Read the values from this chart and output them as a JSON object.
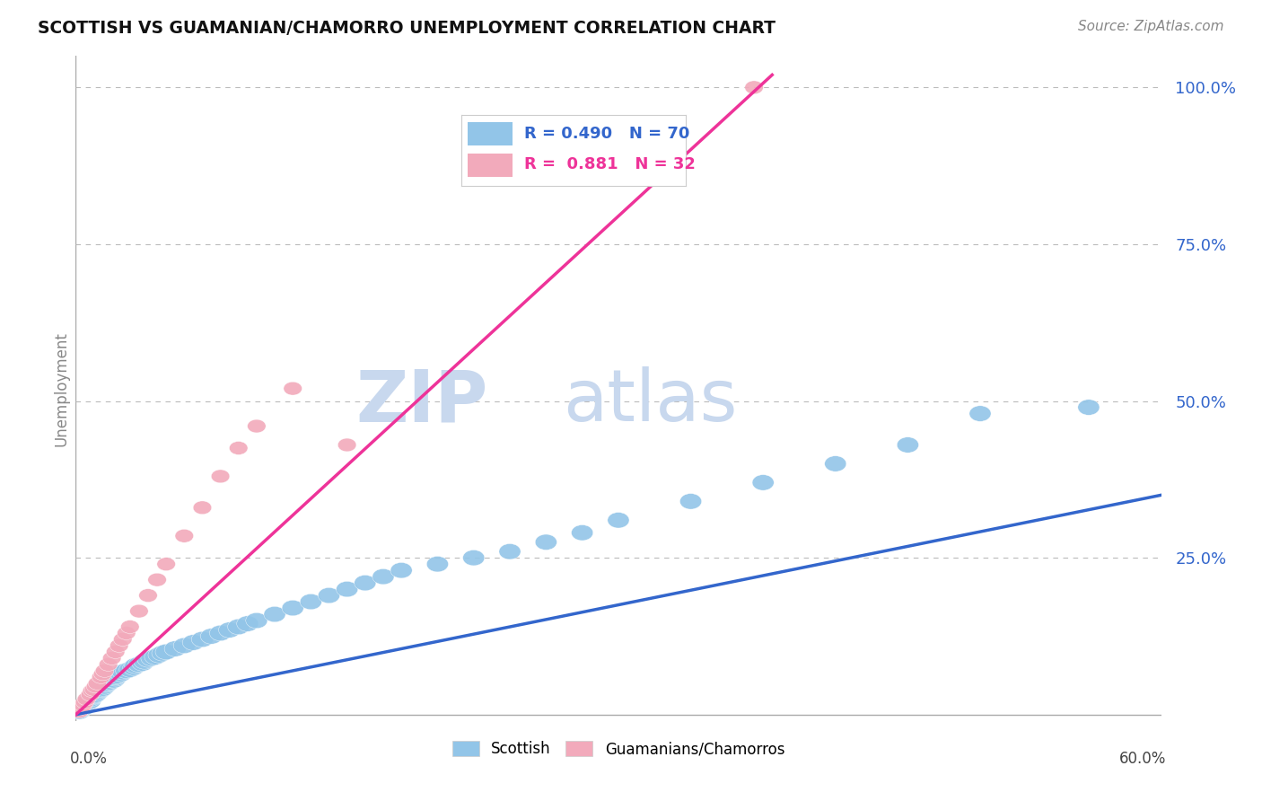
{
  "title": "SCOTTISH VS GUAMANIAN/CHAMORRO UNEMPLOYMENT CORRELATION CHART",
  "source": "Source: ZipAtlas.com",
  "ylabel": "Unemployment",
  "xlim": [
    0.0,
    0.6
  ],
  "ylim": [
    -0.01,
    1.05
  ],
  "legend_r1": "R = 0.490",
  "legend_n1": "N = 70",
  "legend_r2": "R =  0.881",
  "legend_n2": "N = 32",
  "color_scottish": "#92C5E8",
  "color_guamanian": "#F2AABB",
  "color_line_scottish": "#3366CC",
  "color_line_guamanian": "#EE3399",
  "background_color": "#FFFFFF",
  "scottish_x": [
    0.002,
    0.003,
    0.004,
    0.005,
    0.005,
    0.006,
    0.007,
    0.008,
    0.008,
    0.009,
    0.01,
    0.011,
    0.012,
    0.013,
    0.014,
    0.015,
    0.016,
    0.017,
    0.018,
    0.019,
    0.02,
    0.021,
    0.022,
    0.022,
    0.023,
    0.025,
    0.026,
    0.028,
    0.03,
    0.032,
    0.033,
    0.035,
    0.037,
    0.038,
    0.04,
    0.042,
    0.044,
    0.046,
    0.048,
    0.05,
    0.055,
    0.06,
    0.065,
    0.07,
    0.075,
    0.08,
    0.085,
    0.09,
    0.095,
    0.1,
    0.11,
    0.12,
    0.13,
    0.14,
    0.15,
    0.16,
    0.17,
    0.18,
    0.2,
    0.22,
    0.24,
    0.26,
    0.28,
    0.3,
    0.34,
    0.38,
    0.42,
    0.46,
    0.5,
    0.56
  ],
  "scottish_y": [
    0.005,
    0.008,
    0.01,
    0.012,
    0.015,
    0.018,
    0.02,
    0.022,
    0.025,
    0.028,
    0.03,
    0.032,
    0.035,
    0.038,
    0.04,
    0.042,
    0.045,
    0.048,
    0.05,
    0.052,
    0.055,
    0.055,
    0.058,
    0.06,
    0.062,
    0.065,
    0.068,
    0.07,
    0.072,
    0.075,
    0.078,
    0.08,
    0.082,
    0.085,
    0.088,
    0.09,
    0.092,
    0.095,
    0.098,
    0.1,
    0.105,
    0.11,
    0.115,
    0.12,
    0.125,
    0.13,
    0.135,
    0.14,
    0.145,
    0.15,
    0.16,
    0.17,
    0.18,
    0.19,
    0.2,
    0.21,
    0.22,
    0.23,
    0.24,
    0.25,
    0.26,
    0.275,
    0.29,
    0.31,
    0.34,
    0.37,
    0.4,
    0.43,
    0.48,
    0.49
  ],
  "guamanian_x": [
    0.002,
    0.003,
    0.004,
    0.005,
    0.006,
    0.008,
    0.009,
    0.01,
    0.011,
    0.012,
    0.014,
    0.015,
    0.016,
    0.018,
    0.02,
    0.022,
    0.024,
    0.026,
    0.028,
    0.03,
    0.035,
    0.04,
    0.045,
    0.05,
    0.06,
    0.07,
    0.08,
    0.09,
    0.1,
    0.12,
    0.15,
    0.375
  ],
  "guamanian_y": [
    0.005,
    0.01,
    0.015,
    0.02,
    0.025,
    0.032,
    0.038,
    0.04,
    0.045,
    0.05,
    0.06,
    0.065,
    0.07,
    0.08,
    0.09,
    0.1,
    0.11,
    0.12,
    0.13,
    0.14,
    0.165,
    0.19,
    0.215,
    0.24,
    0.285,
    0.33,
    0.38,
    0.425,
    0.46,
    0.52,
    0.43,
    1.0
  ],
  "blue_line_x": [
    0.0,
    0.6
  ],
  "blue_line_y": [
    0.0,
    0.35
  ],
  "pink_line_x": [
    0.0,
    0.385
  ],
  "pink_line_y": [
    0.0,
    1.02
  ],
  "ytick_positions": [
    0.25,
    0.5,
    0.75,
    1.0
  ],
  "ytick_labels": [
    "25.0%",
    "50.0%",
    "75.0%",
    "100.0%"
  ],
  "xtick_left": "0.0%",
  "xtick_right": "60.0%"
}
